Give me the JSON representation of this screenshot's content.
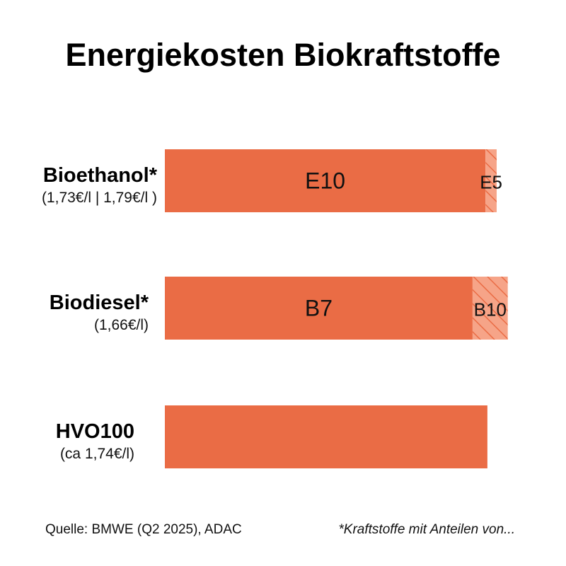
{
  "title": "Energiekosten Biokraftstoffe",
  "colors": {
    "bar": "#ea6c45",
    "hatch_bg": "#f6a488",
    "hatch_line": "#ea6c45"
  },
  "chart_data": {
    "type": "bar",
    "orientation": "horizontal",
    "stacked": true,
    "categories": [
      {
        "label": "Bioethanol*",
        "price": "(1,73€/l | 1,79€/l )"
      },
      {
        "label": "Biodiesel*",
        "price": "(1,66€/l)"
      },
      {
        "label": "HVO100",
        "price": "(ca 1,74€/l)"
      }
    ],
    "series": [
      {
        "fill": "solid",
        "values": [
          1.73,
          1.66,
          1.74
        ],
        "labels": [
          "E10",
          "B7",
          ""
        ]
      },
      {
        "fill": "hatched",
        "values": [
          0.06,
          0.19,
          0
        ],
        "labels": [
          "E5",
          "B10",
          ""
        ]
      }
    ],
    "xlim": [
      0,
      2.0
    ],
    "grid": false,
    "legend": "none"
  },
  "footer": {
    "source": "Quelle: BMWE (Q2 2025), ADAC",
    "note": "*Kraftstoffe mit Anteilen von..."
  }
}
